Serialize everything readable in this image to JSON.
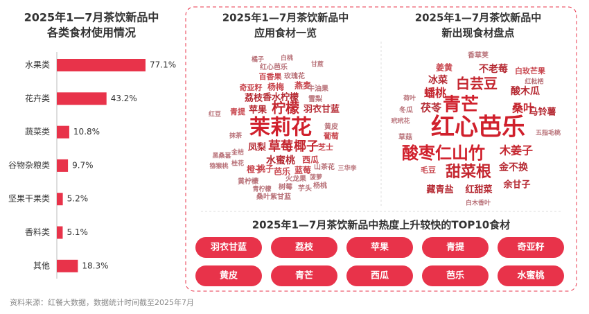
{
  "chart_data": {
    "type": "bar",
    "orientation": "horizontal",
    "title": [
      "2025年1—7月茶饮新品中",
      "各类食材使用情况"
    ],
    "categories": [
      "水果类",
      "花卉类",
      "蔬菜类",
      "谷物杂粮类",
      "坚果干果类",
      "香料类",
      "其他"
    ],
    "values": [
      77.1,
      43.2,
      10.8,
      9.7,
      5.2,
      5.1,
      18.3
    ],
    "value_labels": [
      "77.1%",
      "43.2%",
      "10.8%",
      "9.7%",
      "5.2%",
      "5.1%",
      "18.3%"
    ],
    "color": "#e8334a"
  },
  "cloud_left": {
    "title": [
      "2025年1—7月茶饮新品中",
      "应用食材一览"
    ],
    "words": [
      "茉莉花",
      "柠檬",
      "草莓",
      "椰子",
      "水蜜桃",
      "羽衣甘蓝",
      "荔枝",
      "香水柠檬",
      "燕麦",
      "杨梅",
      "苹果",
      "凤梨",
      "桃子",
      "西瓜",
      "蓝莓",
      "芭乐",
      "橙子",
      "芝士",
      "葡萄",
      "黄皮",
      "青提",
      "奇亚籽",
      "百香果",
      "红心芭乐",
      "玫瑰花",
      "牛油果",
      "山茶花",
      "三华李",
      "桑叶紫甘蓝",
      "黄柠檬",
      "树莓",
      "火龙果",
      "芋头",
      "杨桃",
      "青柠檬",
      "雪梨",
      "红豆",
      "桂花",
      "猕猴桃",
      "菠萝",
      "白桃",
      "金桔",
      "抹茶",
      "黑桑葚",
      "橘子",
      "甘蔗"
    ]
  },
  "cloud_right": {
    "title": [
      "2025年1—7月茶饮新品中",
      "新出现食材盘点"
    ],
    "words": [
      "红心芭乐",
      "青芒",
      "酸枣仁山竹",
      "甜菜根",
      "白芸豆",
      "木姜子",
      "桑叶",
      "蟠桃",
      "茯苓",
      "冰菜",
      "酸木瓜",
      "不老莓",
      "姜黄",
      "白玫芒果",
      "金不换",
      "马铃薯",
      "余甘子",
      "藏青盐",
      "红甜菜",
      "毛豆",
      "白木香叶",
      "香草荚",
      "红枇杷",
      "冬瓜",
      "五指毛桃",
      "荷叶",
      "草菇",
      "玳玳花"
    ]
  },
  "top10": {
    "title": "2025年1—7月茶饮新品中热度上升较快的TOP10食材",
    "items": [
      "羽衣甘蓝",
      "荔枝",
      "苹果",
      "青提",
      "奇亚籽",
      "黄皮",
      "青芒",
      "西瓜",
      "芭乐",
      "水蜜桃"
    ]
  },
  "source": "资料来源：红餐大数据，数据统计时间截至2025年7月"
}
